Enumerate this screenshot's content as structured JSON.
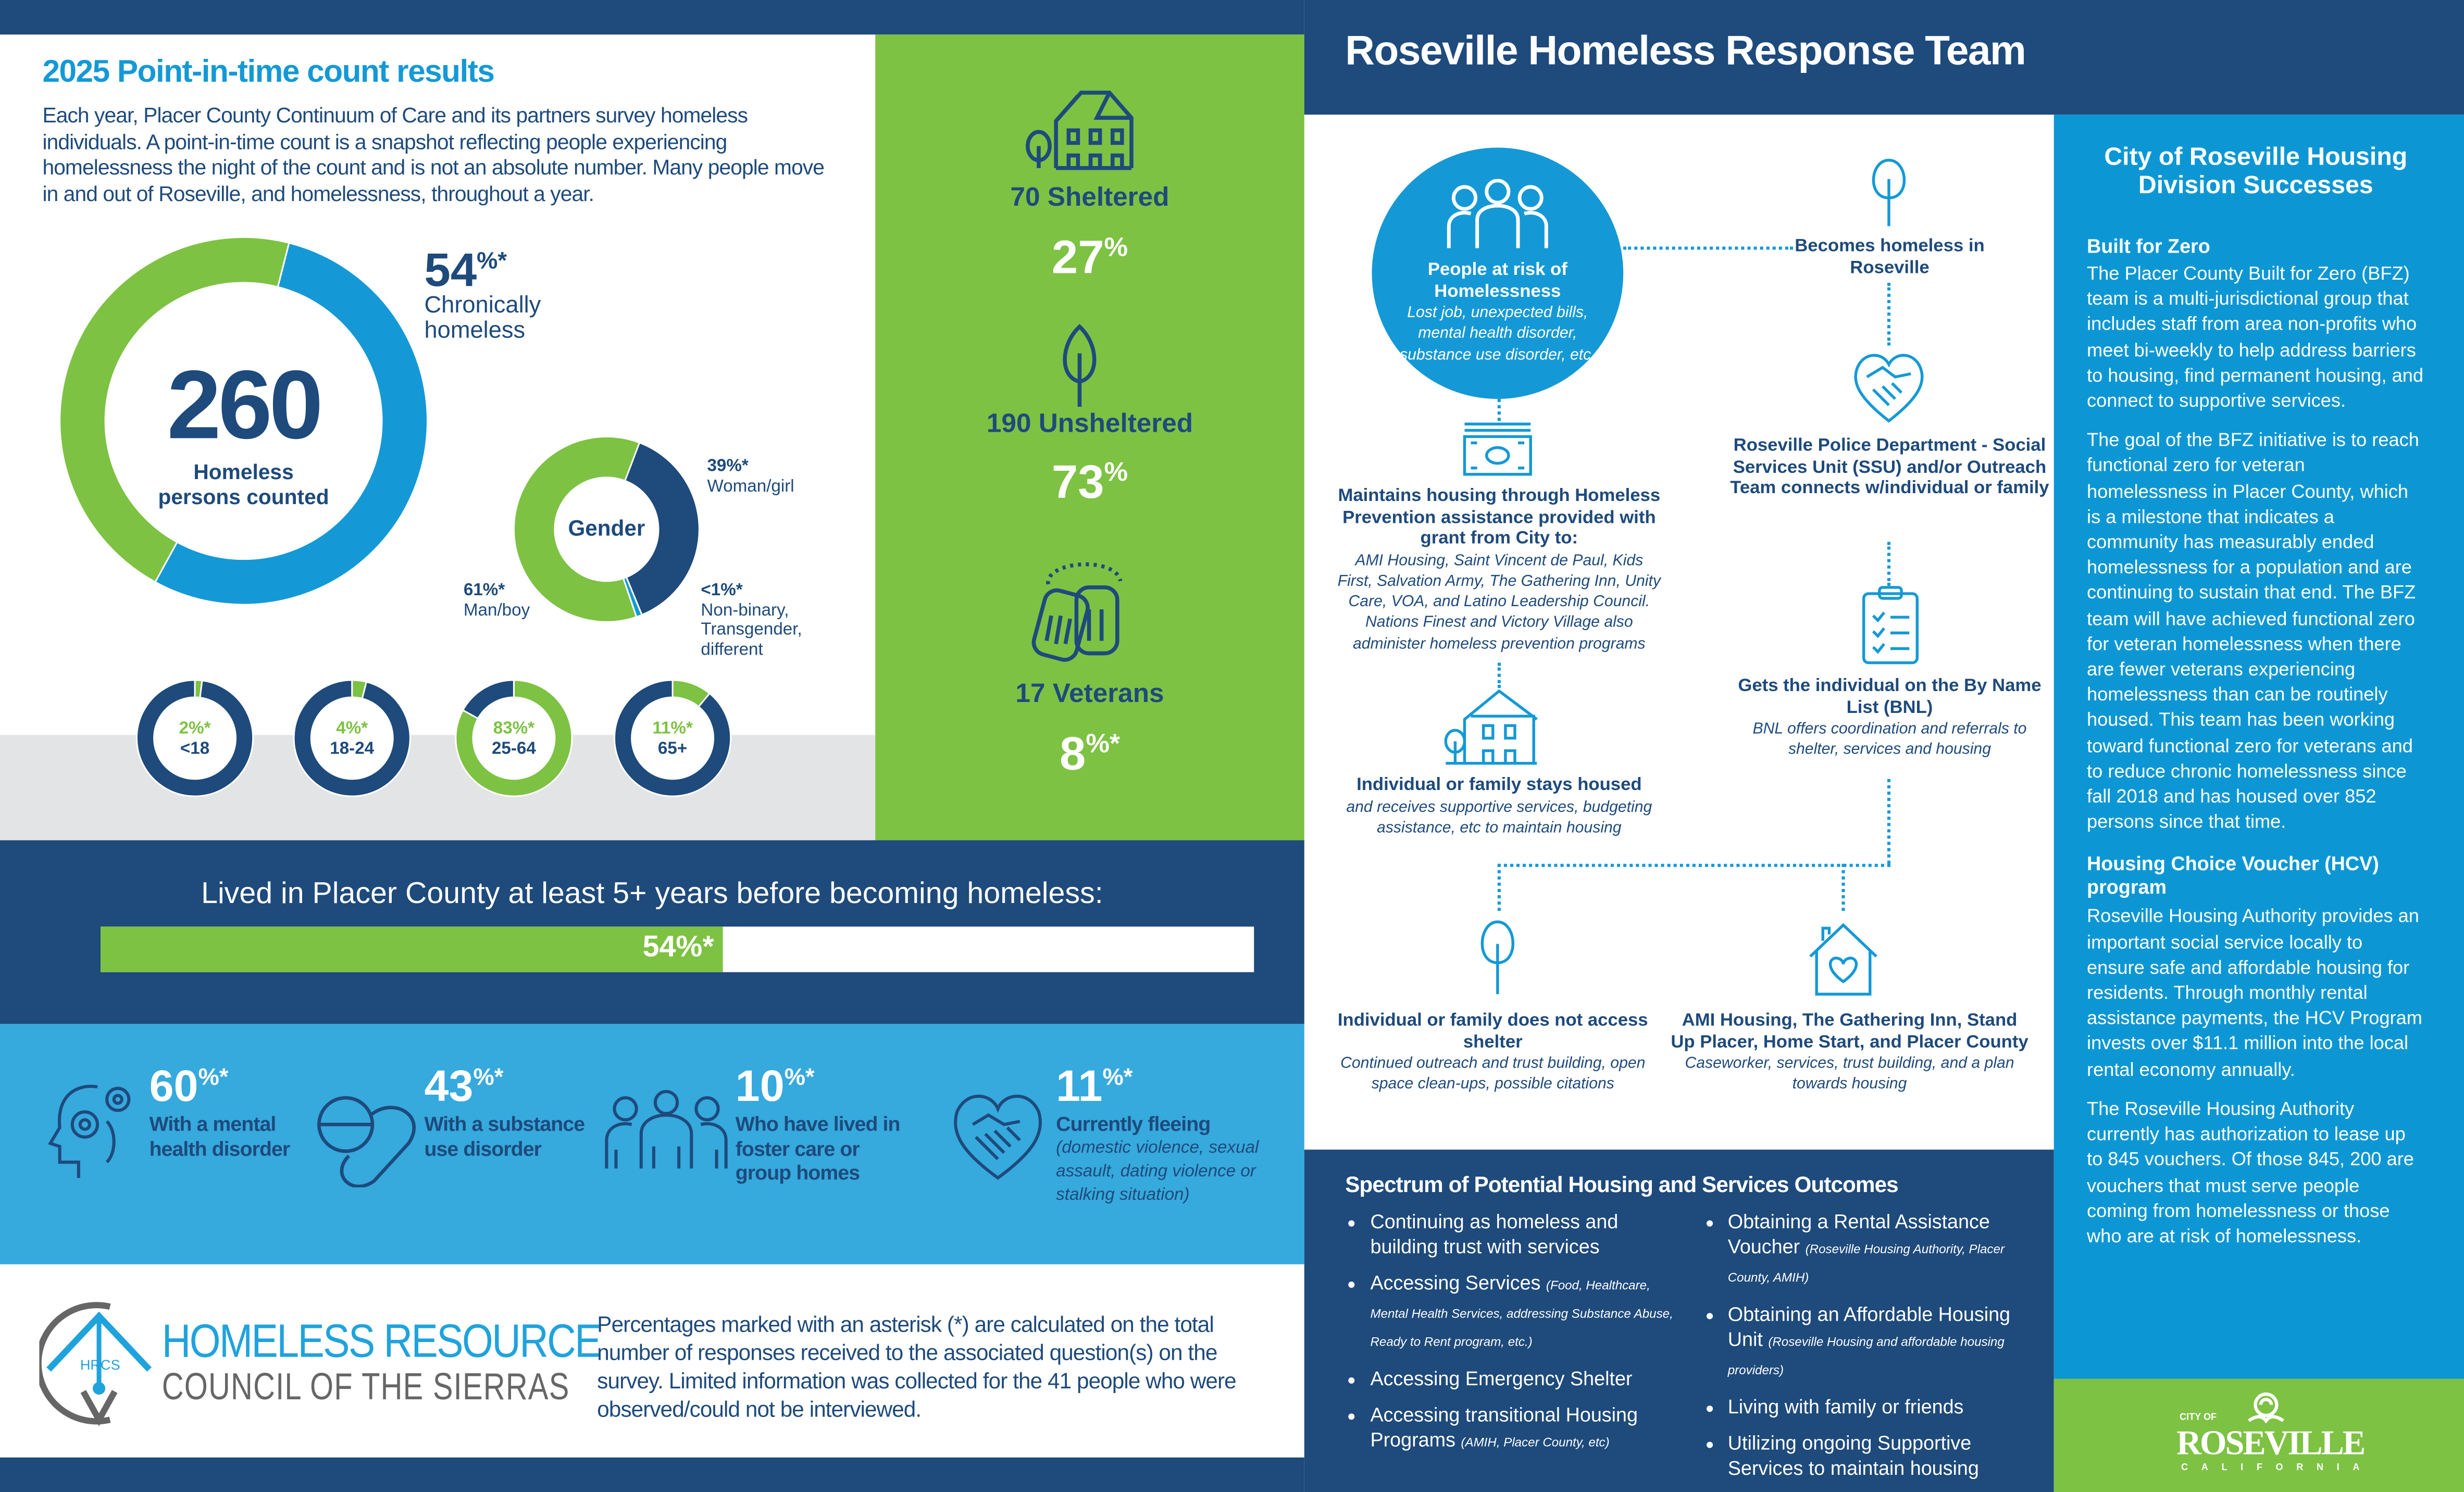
{
  "colors": {
    "navy": "#1e4a7c",
    "green": "#7dc243",
    "blue": "#1499d6",
    "light_blue": "#36a9dd",
    "grey": "#e3e4e6"
  },
  "left": {
    "title": "2025 Point-in-time count results",
    "intro": "Each year, Placer County Continuum of Care and its partners survey homeless individuals. A point-in-time count is a snapshot reflecting people experiencing homelessness the night of the count and is not an absolute number. Many people move in and out of Roseville, and homelessness, throughout a year.",
    "total": {
      "value": "260",
      "label1": "Homeless",
      "label2": "persons counted"
    },
    "chronic": {
      "value": "54",
      "suffix": "%*",
      "label1": "Chronically",
      "label2": "homeless",
      "percent": 54
    },
    "gender": {
      "title": "Gender",
      "segments": [
        {
          "pct_label": "39%*",
          "label": "Woman/girl",
          "value": 39,
          "color": "#1e4a7c"
        },
        {
          "pct_label": "<1%*",
          "label": "Non-binary, Transgender, different",
          "value": 1,
          "color": "#1499d6"
        },
        {
          "pct_label": "61%*",
          "label": "Man/boy",
          "value": 61,
          "color": "#7dc243"
        }
      ]
    },
    "ages": [
      {
        "pct_label": "2%*",
        "label": "<18",
        "value": 2
      },
      {
        "pct_label": "4%*",
        "label": "18-24",
        "value": 4
      },
      {
        "pct_label": "83%*",
        "label": "25-64",
        "value": 83
      },
      {
        "pct_label": "11%*",
        "label": "65+",
        "value": 11
      }
    ]
  },
  "shelter": [
    {
      "label": "70 Sheltered",
      "pct": "27",
      "suffix": "%",
      "icon": "house-icon"
    },
    {
      "label": "190 Unsheltered",
      "pct": "73",
      "suffix": "%",
      "icon": "tree-icon"
    },
    {
      "label": "17 Veterans",
      "pct": "8",
      "suffix": "%*",
      "icon": "dog-tags-icon"
    }
  ],
  "residency": {
    "label": "Lived in Placer County at least 5+ years before becoming homeless:",
    "pct_label": "54%*",
    "value": 54
  },
  "stats": [
    {
      "num": "60",
      "suffix": "%*",
      "label": "With a mental health disorder",
      "icon": "head-gears-icon"
    },
    {
      "num": "43",
      "suffix": "%*",
      "label": "With a substance use disorder",
      "icon": "pill-icon"
    },
    {
      "num": "10",
      "suffix": "%*",
      "label": "Who have lived in foster care or group homes",
      "icon": "family-icon"
    },
    {
      "num": "11",
      "suffix": "%*",
      "label": "Currently fleeing",
      "sub": "(domestic violence, sexual assault, dating violence or stalking situation)",
      "icon": "heart-handshake-icon"
    }
  ],
  "footer": {
    "logo_line1": "HOMELESS RESOURCE",
    "logo_line2": "COUNCIL OF THE SIERRAS",
    "logo_mark": "HRCS",
    "note": "Percentages marked with an asterisk (*) are calculated on the total number of responses received to the associated question(s) on the survey. Limited information was collected for the 41 people who were observed/could not be interviewed."
  },
  "team": {
    "title": "Roseville Homeless Response Team",
    "risk": {
      "title": "People at risk of Homelessness",
      "sub": "Lost job, unexpected bills, mental health disorder, substance use disorder, etc."
    },
    "becomes": {
      "title": "Becomes homeless in Roseville"
    },
    "prevention": {
      "title": "Maintains housing through Homeless Prevention assistance provided with grant from City to:",
      "sub": "AMI Housing, Saint Vincent de Paul, Kids First, Salvation Army, The Gathering Inn, Unity Care, VOA, and Latino Leadership Council. Nations Finest and Victory Village also administer homeless prevention programs"
    },
    "police": {
      "title": "Roseville Police Department - Social Services Unit (SSU) and/or Outreach Team connects w/individual or family"
    },
    "housed": {
      "title": "Individual or family stays housed",
      "sub": "and receives supportive services, budgeting assistance, etc to maintain housing"
    },
    "bnl": {
      "title": "Gets the individual on the By Name List (BNL)",
      "sub": "BNL offers coordination and referrals to shelter, services and housing"
    },
    "no_shelter": {
      "title": "Individual or family does not access shelter",
      "sub": "Continued outreach and trust building, open space clean-ups, possible citations"
    },
    "providers": {
      "title": "AMI Housing, The Gathering Inn, Stand Up Placer, Home Start, and Placer County",
      "sub": "Caseworker, services, trust building, and a plan towards housing"
    }
  },
  "outcomes": {
    "title": "Spectrum of Potential Housing and Services Outcomes",
    "col1": [
      {
        "text": "Continuing as homeless and building trust with services",
        "note": ""
      },
      {
        "text": "Accessing Services",
        "note": "(Food, Healthcare, Mental Health Services, addressing Substance Abuse, Ready to Rent program, etc.)"
      },
      {
        "text": "Accessing Emergency Shelter",
        "note": ""
      },
      {
        "text": "Accessing transitional Housing Programs",
        "note": "(AMIH, Placer County, etc)"
      }
    ],
    "col2": [
      {
        "text": "Obtaining a Rental Assistance Voucher",
        "note": "(Roseville Housing Authority, Placer County, AMIH)"
      },
      {
        "text": "Obtaining an Affordable Housing Unit",
        "note": "(Roseville Housing and affordable housing providers)"
      },
      {
        "text": "Living with family or friends",
        "note": ""
      },
      {
        "text": "Utilizing ongoing Supportive Services to maintain housing",
        "note": ""
      }
    ]
  },
  "sidebar": {
    "title": "City of Roseville Housing Division Successes",
    "s1_title": "Built for Zero",
    "s1_p1": "The Placer County Built for Zero (BFZ) team is a multi-jurisdictional group that includes staff from area non-profits who meet bi-weekly to help address barriers to housing, find permanent housing, and connect to supportive services.",
    "s1_p2": "The goal of the BFZ initiative is to reach functional zero for veteran homelessness in Placer County, which is a milestone that indicates a community has measurably ended homelessness for a population and are continuing to sustain that end. The BFZ team will have achieved functional zero for veteran homelessness when there are fewer veterans experiencing homelessness than can be routinely housed. This team has been working toward functional zero for veterans and to reduce chronic homelessness since fall 2018 and has housed over 852 persons since that time.",
    "s2_title": "Housing Choice Voucher (HCV) program",
    "s2_p1": "Roseville Housing Authority provides an important social service locally to ensure safe and affordable housing for residents. Through monthly rental assistance payments, the HCV Program invests over $11.1 million into the local rental economy annually.",
    "s2_p2": "The Roseville Housing Authority currently has authorization to lease up to 845 vouchers. Of those 845, 200 are vouchers that must serve people coming from homelessness or those who are at risk of homelessness.",
    "logo": {
      "top": "CITY OF",
      "main": "ROSEVILLE",
      "bottom": "CALIFORNIA"
    }
  }
}
